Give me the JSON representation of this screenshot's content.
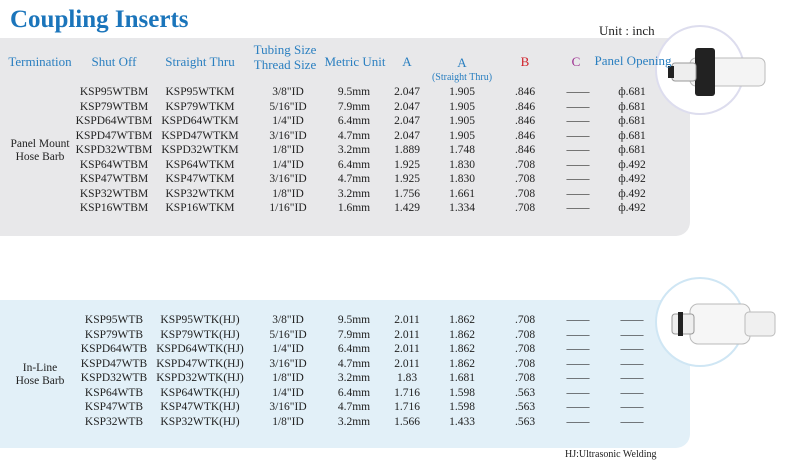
{
  "header": {
    "title": "Coupling Inserts",
    "unit": "Unit : inch"
  },
  "columns": {
    "termination": "Termination",
    "shut_off": "Shut Off",
    "straight_thru": "Straight Thru",
    "tubing": [
      "Tubing Size",
      "Thread Size"
    ],
    "metric": "Metric Unit",
    "a": "A",
    "a_straight": [
      "A",
      "(Straight Thru)"
    ],
    "b": "B",
    "c": "C",
    "panel": "Panel Opening"
  },
  "groups": [
    {
      "label": [
        "Panel Mount",
        "Hose Barb"
      ],
      "rows": [
        [
          "KSP95WTBM",
          "KSP95WTKM",
          "3/8\"ID",
          "9.5mm",
          "2.047",
          "1.905",
          ".846",
          "——",
          "ф.681"
        ],
        [
          "KSP79WTBM",
          "KSP79WTKM",
          "5/16\"ID",
          "7.9mm",
          "2.047",
          "1.905",
          ".846",
          "——",
          "ф.681"
        ],
        [
          "KSPD64WTBM",
          "KSPD64WTKM",
          "1/4\"ID",
          "6.4mm",
          "2.047",
          "1.905",
          ".846",
          "——",
          "ф.681"
        ],
        [
          "KSPD47WTBM",
          "KSPD47WTKM",
          "3/16\"ID",
          "4.7mm",
          "2.047",
          "1.905",
          ".846",
          "——",
          "ф.681"
        ],
        [
          "KSPD32WTBM",
          "KSPD32WTKM",
          "1/8\"ID",
          "3.2mm",
          "1.889",
          "1.748",
          ".846",
          "——",
          "ф.681"
        ],
        [
          "KSP64WTBM",
          "KSP64WTKM",
          "1/4\"ID",
          "6.4mm",
          "1.925",
          "1.830",
          ".708",
          "——",
          "ф.492"
        ],
        [
          "KSP47WTBM",
          "KSP47WTKM",
          "3/16\"ID",
          "4.7mm",
          "1.925",
          "1.830",
          ".708",
          "——",
          "ф.492"
        ],
        [
          "KSP32WTBM",
          "KSP32WTKM",
          "1/8\"ID",
          "3.2mm",
          "1.756",
          "1.661",
          ".708",
          "——",
          "ф.492"
        ],
        [
          "KSP16WTBM",
          "KSP16WTKM",
          "1/16\"ID",
          "1.6mm",
          "1.429",
          "1.334",
          ".708",
          "——",
          "ф.492"
        ]
      ]
    },
    {
      "label": [
        "In-Line",
        "Hose Barb"
      ],
      "rows": [
        [
          "KSP95WTB",
          "KSP95WTK(HJ)",
          "3/8\"ID",
          "9.5mm",
          "2.011",
          "1.862",
          ".708",
          "——",
          "——"
        ],
        [
          "KSP79WTB",
          "KSP79WTK(HJ)",
          "5/16\"ID",
          "7.9mm",
          "2.011",
          "1.862",
          ".708",
          "——",
          "——"
        ],
        [
          "KSPD64WTB",
          "KSPD64WTK(HJ)",
          "1/4\"ID",
          "6.4mm",
          "2.011",
          "1.862",
          ".708",
          "——",
          "——"
        ],
        [
          "KSPD47WTB",
          "KSPD47WTK(HJ)",
          "3/16\"ID",
          "4.7mm",
          "2.011",
          "1.862",
          ".708",
          "——",
          "——"
        ],
        [
          "KSPD32WTB",
          "KSPD32WTK(HJ)",
          "1/8\"ID",
          "3.2mm",
          "1.83",
          "1.681",
          ".708",
          "——",
          "——"
        ],
        [
          "KSP64WTB",
          "KSP64WTK(HJ)",
          "1/4\"ID",
          "6.4mm",
          "1.716",
          "1.598",
          ".563",
          "——",
          "——"
        ],
        [
          "KSP47WTB",
          "KSP47WTK(HJ)",
          "3/16\"ID",
          "4.7mm",
          "1.716",
          "1.598",
          ".563",
          "——",
          "——"
        ],
        [
          "KSP32WTB",
          "KSP32WTK(HJ)",
          "1/8\"ID",
          "3.2mm",
          "1.566",
          "1.433",
          ".563",
          "——",
          "——"
        ]
      ]
    }
  ],
  "footnote": "HJ:Ultrasonic Welding"
}
